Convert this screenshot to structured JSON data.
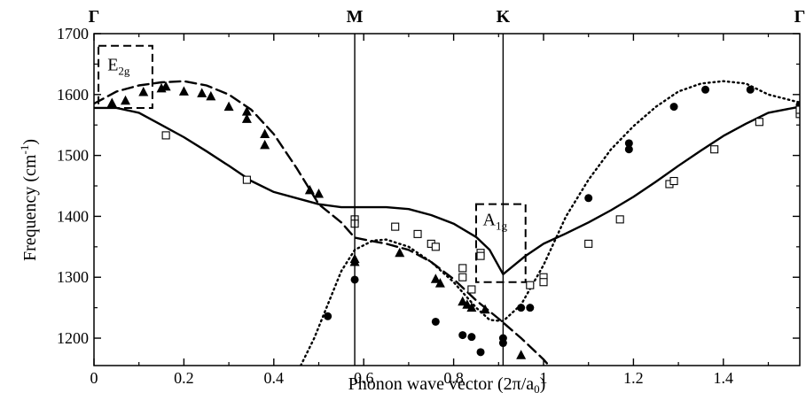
{
  "chart_data": {
    "type": "scatter",
    "xlabel": "Phonon wave vector (2π/a",
    "xlabel_sub": "0",
    "xlabel_end": ")",
    "ylabel": "Frequency (cm",
    "ylabel_sup": "-1",
    "ylabel_end": ")",
    "xlim": [
      0,
      1.57
    ],
    "ylim": [
      1155,
      1700
    ],
    "x_ticks": [
      0,
      0.2,
      0.4,
      0.6,
      0.8,
      1,
      1.2,
      1.4
    ],
    "x_tick_labels": [
      "0",
      "0.2",
      "0.4",
      "0.6",
      "0.8",
      "1",
      "1.2",
      "1.4"
    ],
    "y_ticks": [
      1200,
      1300,
      1400,
      1500,
      1600,
      1700
    ],
    "y_tick_labels": [
      "1200",
      "1300",
      "1400",
      "1500",
      "1600",
      "1700"
    ],
    "grid": false,
    "high_symmetry_points": [
      {
        "label": "Γ",
        "x": 0,
        "line": false
      },
      {
        "label": "M",
        "x": 0.58,
        "line": true
      },
      {
        "label": "K",
        "x": 0.91,
        "line": true
      },
      {
        "label": "Γ",
        "x": 1.57,
        "line": false
      }
    ],
    "annotations": [
      {
        "main": "E",
        "sub": "2g",
        "box_x": [
          0.01,
          0.13
        ],
        "box_y": [
          1578,
          1680
        ],
        "label_at": [
          0.03,
          1640
        ]
      },
      {
        "main": "A",
        "sub": "1g",
        "box_x": [
          0.85,
          0.96
        ],
        "box_y": [
          1292,
          1420
        ],
        "label_at": [
          0.865,
          1385
        ]
      }
    ],
    "series": [
      {
        "style": "solid",
        "points": [
          [
            0,
            1578
          ],
          [
            0.05,
            1578
          ],
          [
            0.1,
            1570
          ],
          [
            0.15,
            1550
          ],
          [
            0.2,
            1530
          ],
          [
            0.25,
            1507
          ],
          [
            0.3,
            1483
          ],
          [
            0.35,
            1458
          ],
          [
            0.4,
            1440
          ],
          [
            0.45,
            1430
          ],
          [
            0.5,
            1420
          ],
          [
            0.55,
            1415
          ],
          [
            0.6,
            1415
          ],
          [
            0.65,
            1415
          ],
          [
            0.7,
            1412
          ],
          [
            0.75,
            1402
          ],
          [
            0.8,
            1388
          ],
          [
            0.85,
            1366
          ],
          [
            0.88,
            1345
          ],
          [
            0.91,
            1305
          ],
          [
            0.96,
            1335
          ],
          [
            1.0,
            1355
          ],
          [
            1.05,
            1372
          ],
          [
            1.1,
            1390
          ],
          [
            1.15,
            1410
          ],
          [
            1.2,
            1432
          ],
          [
            1.25,
            1457
          ],
          [
            1.3,
            1483
          ],
          [
            1.35,
            1508
          ],
          [
            1.4,
            1532
          ],
          [
            1.45,
            1552
          ],
          [
            1.5,
            1570
          ],
          [
            1.57,
            1580
          ]
        ]
      },
      {
        "style": "dashed",
        "points": [
          [
            0,
            1585
          ],
          [
            0.05,
            1605
          ],
          [
            0.1,
            1615
          ],
          [
            0.15,
            1620
          ],
          [
            0.2,
            1622
          ],
          [
            0.25,
            1615
          ],
          [
            0.3,
            1600
          ],
          [
            0.35,
            1575
          ],
          [
            0.4,
            1535
          ],
          [
            0.45,
            1480
          ],
          [
            0.5,
            1420
          ],
          [
            0.55,
            1390
          ],
          [
            0.58,
            1365
          ],
          [
            0.6,
            1362
          ],
          [
            0.65,
            1355
          ],
          [
            0.7,
            1345
          ],
          [
            0.75,
            1325
          ],
          [
            0.8,
            1297
          ],
          [
            0.85,
            1262
          ],
          [
            0.9,
            1232
          ],
          [
            0.95,
            1200
          ],
          [
            1.0,
            1165
          ],
          [
            1.03,
            1140
          ]
        ]
      },
      {
        "style": "dotted",
        "points": [
          [
            0.46,
            1155
          ],
          [
            0.49,
            1200
          ],
          [
            0.52,
            1255
          ],
          [
            0.55,
            1310
          ],
          [
            0.58,
            1345
          ],
          [
            0.62,
            1360
          ],
          [
            0.65,
            1362
          ],
          [
            0.7,
            1350
          ],
          [
            0.75,
            1325
          ],
          [
            0.8,
            1292
          ],
          [
            0.85,
            1250
          ],
          [
            0.88,
            1230
          ],
          [
            0.91,
            1228
          ],
          [
            0.95,
            1255
          ],
          [
            1.0,
            1320
          ],
          [
            1.05,
            1400
          ],
          [
            1.1,
            1460
          ],
          [
            1.15,
            1510
          ],
          [
            1.2,
            1548
          ],
          [
            1.25,
            1580
          ],
          [
            1.3,
            1605
          ],
          [
            1.35,
            1618
          ],
          [
            1.4,
            1622
          ],
          [
            1.45,
            1618
          ],
          [
            1.5,
            1600
          ],
          [
            1.57,
            1587
          ]
        ]
      },
      {
        "marker": "triangle",
        "points": [
          [
            0.04,
            1586
          ],
          [
            0.07,
            1590
          ],
          [
            0.11,
            1604
          ],
          [
            0.15,
            1610
          ],
          [
            0.16,
            1613
          ],
          [
            0.2,
            1605
          ],
          [
            0.24,
            1602
          ],
          [
            0.26,
            1597
          ],
          [
            0.3,
            1580
          ],
          [
            0.34,
            1572
          ],
          [
            0.34,
            1560
          ],
          [
            0.38,
            1535
          ],
          [
            0.38,
            1517
          ],
          [
            0.48,
            1443
          ],
          [
            0.5,
            1437
          ],
          [
            0.58,
            1330
          ],
          [
            0.58,
            1325
          ],
          [
            0.68,
            1340
          ],
          [
            0.76,
            1297
          ],
          [
            0.77,
            1290
          ],
          [
            0.82,
            1260
          ],
          [
            0.83,
            1255
          ],
          [
            0.84,
            1250
          ],
          [
            0.87,
            1247
          ],
          [
            0.95,
            1172
          ]
        ]
      },
      {
        "marker": "circle",
        "points": [
          [
            0.52,
            1236
          ],
          [
            0.58,
            1296
          ],
          [
            0.76,
            1227
          ],
          [
            0.82,
            1205
          ],
          [
            0.84,
            1202
          ],
          [
            0.86,
            1177
          ],
          [
            0.91,
            1192
          ],
          [
            0.91,
            1200
          ],
          [
            0.95,
            1250
          ],
          [
            0.97,
            1250
          ],
          [
            1.1,
            1430
          ],
          [
            1.19,
            1510
          ],
          [
            1.19,
            1520
          ],
          [
            1.29,
            1580
          ],
          [
            1.36,
            1608
          ],
          [
            1.46,
            1608
          ],
          [
            1.57,
            1583
          ]
        ]
      },
      {
        "marker": "square",
        "points": [
          [
            0.16,
            1533
          ],
          [
            0.34,
            1460
          ],
          [
            0.58,
            1395
          ],
          [
            0.58,
            1388
          ],
          [
            0.67,
            1383
          ],
          [
            0.72,
            1371
          ],
          [
            0.75,
            1355
          ],
          [
            0.76,
            1350
          ],
          [
            0.82,
            1315
          ],
          [
            0.82,
            1300
          ],
          [
            0.84,
            1280
          ],
          [
            0.86,
            1340
          ],
          [
            0.86,
            1335
          ],
          [
            0.97,
            1287
          ],
          [
            1.0,
            1300
          ],
          [
            1.0,
            1292
          ],
          [
            1.1,
            1355
          ],
          [
            1.17,
            1395
          ],
          [
            1.28,
            1453
          ],
          [
            1.29,
            1458
          ],
          [
            1.38,
            1510
          ],
          [
            1.48,
            1555
          ],
          [
            1.57,
            1568
          ],
          [
            1.57,
            1575
          ]
        ]
      }
    ]
  }
}
